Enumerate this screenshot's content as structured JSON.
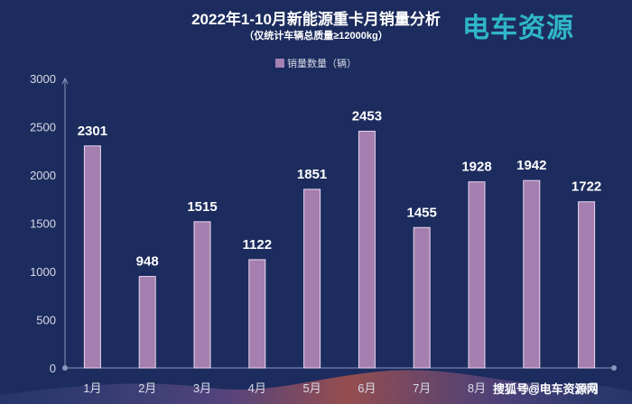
{
  "chart_data": {
    "type": "bar",
    "title": "2022年1-10月新能源重卡月销量分析",
    "subtitle": "（仅统计车辆总质量≥12000kg）",
    "categories": [
      "1月",
      "2月",
      "3月",
      "4月",
      "5月",
      "6月",
      "7月",
      "8月",
      "9月",
      "10月"
    ],
    "series": [
      {
        "name": "销量数量（辆）",
        "values": [
          2301,
          948,
          1515,
          1122,
          1851,
          2453,
          1455,
          1928,
          1942,
          1722
        ]
      }
    ],
    "ylim": [
      0,
      3000
    ],
    "yticks": [
      0,
      500,
      1000,
      1500,
      2000,
      2500,
      3000
    ],
    "legend_position": "top-center",
    "grid": false,
    "data_labels": true,
    "colors": {
      "bar": "#a57fb0",
      "bar_border": "#e9d8ee",
      "background": "#1d2c5e",
      "axis": "#8a96bd"
    }
  },
  "logo_text": "电车资源",
  "watermark": "搜狐号@电车资源网"
}
